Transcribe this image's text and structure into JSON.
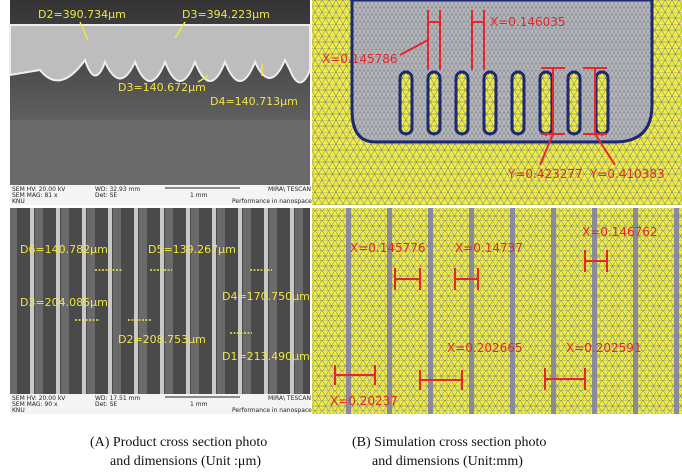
{
  "panel_a_top": {
    "labels": [
      "D2=390.734μm",
      "D3=394.223μm",
      "D3=140.672μm",
      "D4=140.713μm"
    ],
    "footer": [
      "SEM HV: 20.00 kV",
      "WD: 32.93 mm",
      "MIRA\\ TESCAN",
      "SEM MAG: 81 x",
      "Det: SE",
      "1 mm",
      "KNU",
      "Performance in nanospace"
    ]
  },
  "panel_a_bottom": {
    "labels": [
      "D6=140.782μm",
      "D5=139.267μm",
      "D3=204.085μm",
      "D4=170.750μm",
      "D2=208.753μm",
      "D1=213.490μm"
    ],
    "footer": [
      "SEM HV: 20.00 kV",
      "WD: 17.51 mm",
      "MIRA\\ TESCAN",
      "SEM MAG: 90 x",
      "Det: SE",
      "1 mm",
      "KNU",
      "Performance in nanospace"
    ]
  },
  "panel_b_top": {
    "labels": [
      "X=0.146035",
      "X=0.145786",
      "Y=0.423277",
      "Y=0.410383"
    ]
  },
  "panel_b_bottom": {
    "labels": [
      "X=0.145776",
      "X=0.14737",
      "X=0.146762",
      "X=0.202665",
      "X=0.202591",
      "X=0.20237"
    ]
  },
  "captions": {
    "a": [
      "(A) Product cross section photo",
      "and dimensions (Unit :μm)"
    ],
    "b": [
      "(B) Simulation cross section photo",
      "and dimensions (Unit:mm)"
    ]
  }
}
